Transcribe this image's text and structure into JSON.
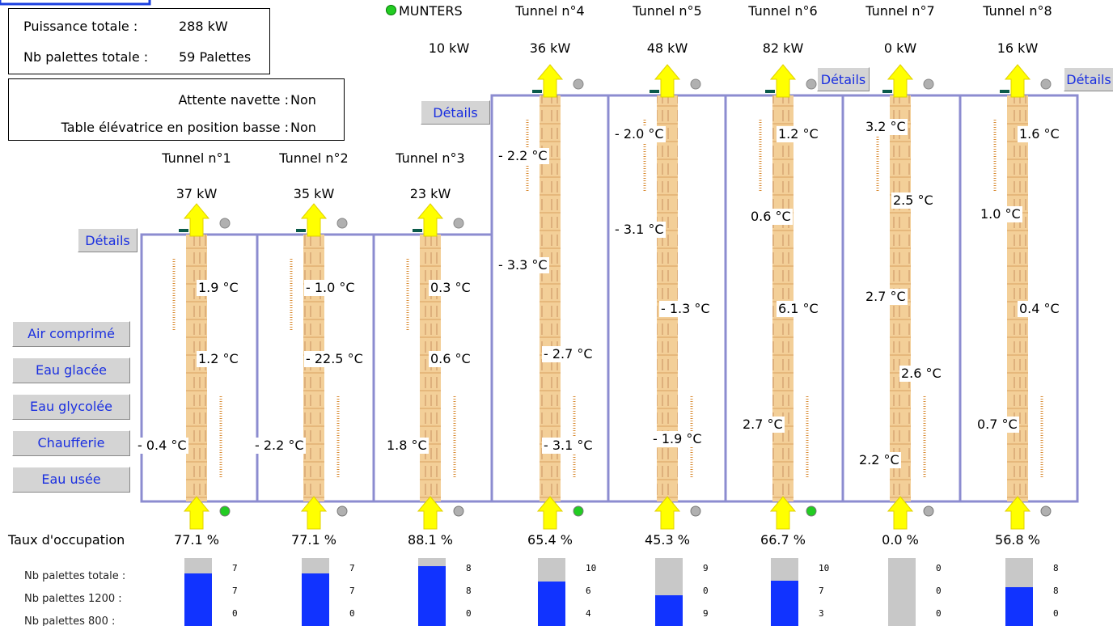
{
  "summary": {
    "power_label": "Puissance totale :",
    "power_value": "288 kW",
    "pallets_label": "Nb palettes totale :",
    "pallets_value": "59 Palettes"
  },
  "status": {
    "shuttle_label": "Attente navette :",
    "shuttle_value": "Non",
    "table_label": "Table élévatrice en position basse :",
    "table_value": "Non"
  },
  "munters": {
    "label": "MUNTERS",
    "power": "10 kW"
  },
  "details_label": "Détails",
  "buttons": [
    "Air comprimé",
    "Eau glacée",
    "Eau glycolée",
    "Chaufferie",
    "Eau usée"
  ],
  "occupation_label": "Taux d'occupation",
  "pallet_labels": [
    "Nb palettes totale :",
    "Nb palettes 1200 :",
    "Nb palettes 800 :"
  ],
  "tunnels": [
    {
      "name": "Tunnel n°1",
      "power": "37 kW",
      "temps": [
        "1.9 °C",
        "1.2 °C",
        "- 0.4 °C"
      ],
      "occupation": {
        "value": 77.1,
        "label": "77.1 %"
      },
      "counts": [
        7,
        7,
        0
      ],
      "indicator": "green"
    },
    {
      "name": "Tunnel n°2",
      "power": "35 kW",
      "temps": [
        "- 1.0 °C",
        "- 22.5 °C",
        "- 2.2 °C"
      ],
      "occupation": {
        "value": 77.1,
        "label": "77.1 %"
      },
      "counts": [
        7,
        7,
        0
      ],
      "indicator": "gray"
    },
    {
      "name": "Tunnel n°3",
      "power": "23 kW",
      "temps": [
        "0.3 °C",
        "0.6 °C",
        "1.8 °C"
      ],
      "occupation": {
        "value": 88.1,
        "label": "88.1 %"
      },
      "counts": [
        8,
        8,
        0
      ],
      "indicator": "gray"
    },
    {
      "name": "Tunnel n°4",
      "power": "36 kW",
      "temps": [
        "- 2.2 °C",
        "- 3.3 °C",
        "- 2.7 °C",
        "- 3.1 °C"
      ],
      "occupation": {
        "value": 65.4,
        "label": "65.4 %"
      },
      "counts": [
        10,
        6,
        4
      ],
      "indicator": "green"
    },
    {
      "name": "Tunnel n°5",
      "power": "48 kW",
      "temps": [
        "- 2.0 °C",
        "- 3.1 °C",
        "- 1.3 °C",
        "- 1.9 °C"
      ],
      "occupation": {
        "value": 45.3,
        "label": "45.3 %"
      },
      "counts": [
        9,
        0,
        9
      ],
      "indicator": "gray"
    },
    {
      "name": "Tunnel n°6",
      "power": "82 kW",
      "temps": [
        "1.2 °C",
        "0.6 °C",
        "6.1 °C",
        "2.7 °C"
      ],
      "occupation": {
        "value": 66.7,
        "label": "66.7 %"
      },
      "counts": [
        10,
        7,
        3
      ],
      "indicator": "green"
    },
    {
      "name": "Tunnel n°7",
      "power": "0 kW",
      "temps": [
        "3.2 °C",
        "2.5 °C",
        "2.7 °C",
        "2.6 °C",
        "2.2 °C"
      ],
      "occupation": {
        "value": 0.0,
        "label": "0.0 %"
      },
      "counts": [
        0,
        0,
        0
      ],
      "indicator": "gray"
    },
    {
      "name": "Tunnel n°8",
      "power": "16 kW",
      "temps": [
        "1.6 °C",
        "1.0 °C",
        "0.4 °C",
        "0.7 °C"
      ],
      "occupation": {
        "value": 56.8,
        "label": "56.8 %"
      },
      "counts": [
        8,
        8,
        0
      ],
      "indicator": "gray"
    }
  ]
}
